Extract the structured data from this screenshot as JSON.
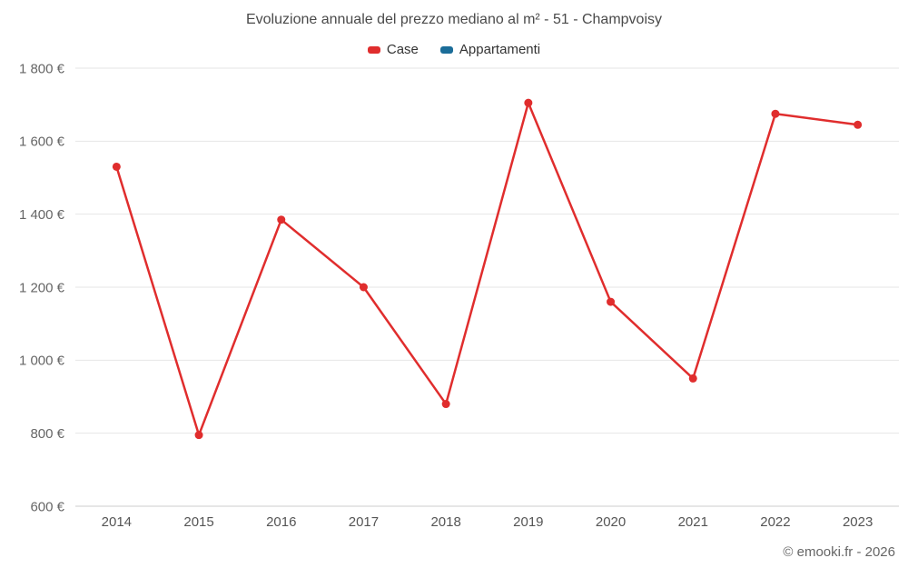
{
  "chart_data": {
    "type": "line",
    "title": "Evoluzione annuale del prezzo mediano al m² - 51 - Champvoisy",
    "categories": [
      "2014",
      "2015",
      "2016",
      "2017",
      "2018",
      "2019",
      "2020",
      "2021",
      "2022",
      "2023"
    ],
    "series": [
      {
        "name": "Case",
        "color": "#e02d2d",
        "values": [
          1530,
          795,
          1385,
          1200,
          880,
          1705,
          1160,
          950,
          1675,
          1645
        ]
      },
      {
        "name": "Appartamenti",
        "color": "#1b6d99",
        "values": []
      }
    ],
    "ylim": [
      600,
      1800
    ],
    "ytick_step": 200,
    "ytick_labels": [
      "600 €",
      "800 €",
      "1 000 €",
      "1 200 €",
      "1 400 €",
      "1 600 €",
      "1 800 €"
    ],
    "grid": true,
    "legend_position": "top",
    "xlabel": "",
    "ylabel": ""
  },
  "footer": {
    "credit": "© emooki.fr - 2026"
  }
}
